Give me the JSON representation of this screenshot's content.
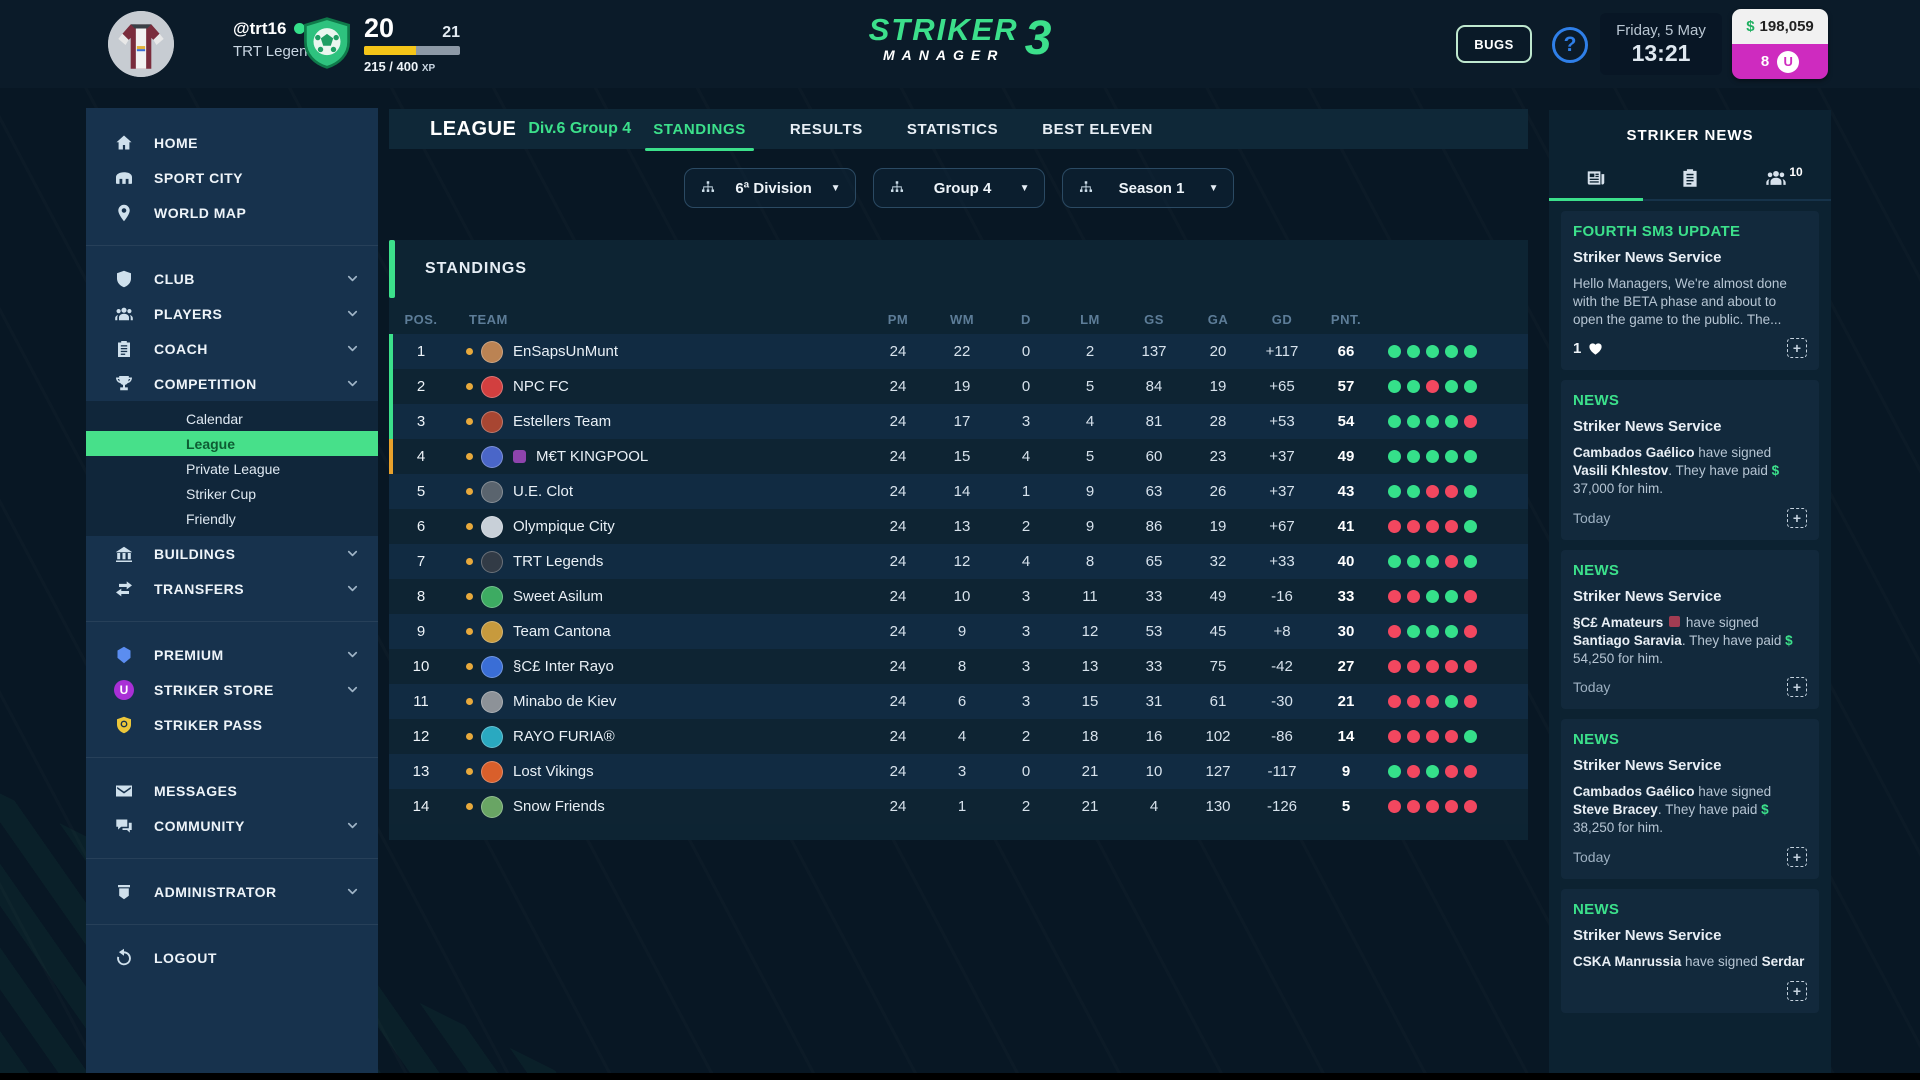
{
  "header": {
    "username": "@trt16",
    "club": "TRT Legends",
    "level": "20",
    "next_level": "21",
    "xp_text": "215 / 400",
    "xp_suffix": "XP",
    "xp_pct": 54,
    "logo": {
      "line1": "STRIKER",
      "line2": "MANAGER",
      "number": "3"
    },
    "bugs": "BUGS",
    "help": "?",
    "date": "Friday, 5 May",
    "time": "13:21",
    "currency": "$",
    "money": "198,059",
    "gems": "8",
    "gem_letter": "U"
  },
  "sidebar": {
    "sections": [
      {
        "items": [
          {
            "label": "HOME",
            "icon": "home"
          },
          {
            "label": "SPORT CITY",
            "icon": "stadium"
          },
          {
            "label": "WORLD MAP",
            "icon": "pin"
          }
        ]
      },
      {
        "items": [
          {
            "label": "CLUB",
            "icon": "shield",
            "chevron": true
          },
          {
            "label": "PLAYERS",
            "icon": "players",
            "chevron": true
          },
          {
            "label": "COACH",
            "icon": "clipboard",
            "chevron": true
          },
          {
            "label": "COMPETITION",
            "icon": "trophy",
            "chevron": true,
            "children": [
              {
                "label": "Calendar"
              },
              {
                "label": "League",
                "active": true
              },
              {
                "label": "Private League"
              },
              {
                "label": "Striker Cup"
              },
              {
                "label": "Friendly"
              }
            ]
          },
          {
            "label": "BUILDINGS",
            "icon": "buildings",
            "chevron": true
          },
          {
            "label": "TRANSFERS",
            "icon": "transfers",
            "chevron": true
          }
        ]
      },
      {
        "items": [
          {
            "label": "PREMIUM",
            "icon": "gem",
            "icon_color": "#5b8df0",
            "chevron": true
          },
          {
            "label": "STRIKER STORE",
            "icon": "store",
            "chevron": true
          },
          {
            "label": "STRIKER PASS",
            "icon": "pass",
            "icon_color": "#ecc73a"
          }
        ]
      },
      {
        "items": [
          {
            "label": "MESSAGES",
            "icon": "envelope"
          },
          {
            "label": "COMMUNITY",
            "icon": "chat",
            "chevron": true
          }
        ]
      },
      {
        "items": [
          {
            "label": "ADMINISTRATOR",
            "icon": "admin",
            "chevron": true
          }
        ]
      },
      {
        "items": [
          {
            "label": "LOGOUT",
            "icon": "logout"
          }
        ]
      }
    ]
  },
  "main": {
    "league_label": "LEAGUE",
    "league_sub": "Div.6 Group 4",
    "tabs": [
      {
        "label": "STANDINGS",
        "active": true
      },
      {
        "label": "RESULTS"
      },
      {
        "label": "STATISTICS"
      },
      {
        "label": "BEST ELEVEN"
      }
    ],
    "filters": [
      {
        "label": "6ª Division"
      },
      {
        "label": "Group 4"
      },
      {
        "label": "Season 1"
      }
    ],
    "panel_title": "STANDINGS",
    "table": {
      "columns": [
        "POS.",
        "TEAM",
        "PM",
        "WM",
        "D",
        "LM",
        "GS",
        "GA",
        "GD",
        "PNT."
      ],
      "rows": [
        {
          "pos": "1",
          "name": "EnSapsUnMunt",
          "crest": "#bb8353",
          "accent": "green",
          "pm": "24",
          "wm": "22",
          "d": "0",
          "lm": "2",
          "gs": "137",
          "ga": "20",
          "gd": "+117",
          "pnt": "66",
          "form": [
            "W",
            "W",
            "W",
            "W",
            "W"
          ]
        },
        {
          "pos": "2",
          "name": "NPC FC",
          "crest": "#d23f3f",
          "accent": "green",
          "pm": "24",
          "wm": "19",
          "d": "0",
          "lm": "5",
          "gs": "84",
          "ga": "19",
          "gd": "+65",
          "pnt": "57",
          "form": [
            "W",
            "W",
            "L",
            "W",
            "W"
          ]
        },
        {
          "pos": "3",
          "name": "Estellers Team",
          "crest": "#a84632",
          "accent": "green",
          "pm": "24",
          "wm": "17",
          "d": "3",
          "lm": "4",
          "gs": "81",
          "ga": "28",
          "gd": "+53",
          "pnt": "54",
          "form": [
            "W",
            "W",
            "W",
            "W",
            "L"
          ]
        },
        {
          "pos": "4",
          "name": "M€T KINGPOOL",
          "crest": "#4a66c8",
          "accent": "orange",
          "badge": "#8e44ad",
          "pm": "24",
          "wm": "15",
          "d": "4",
          "lm": "5",
          "gs": "60",
          "ga": "23",
          "gd": "+37",
          "pnt": "49",
          "form": [
            "W",
            "W",
            "W",
            "W",
            "W"
          ]
        },
        {
          "pos": "5",
          "name": "U.E. Clot",
          "crest": "#5a646e",
          "pm": "24",
          "wm": "14",
          "d": "1",
          "lm": "9",
          "gs": "63",
          "ga": "26",
          "gd": "+37",
          "pnt": "43",
          "form": [
            "W",
            "W",
            "L",
            "L",
            "W"
          ]
        },
        {
          "pos": "6",
          "name": "Olympique City",
          "crest": "#c8d0d8",
          "pm": "24",
          "wm": "13",
          "d": "2",
          "lm": "9",
          "gs": "86",
          "ga": "19",
          "gd": "+67",
          "pnt": "41",
          "form": [
            "L",
            "L",
            "L",
            "L",
            "W"
          ]
        },
        {
          "pos": "7",
          "name": "TRT Legends",
          "crest": "#323b46",
          "pm": "24",
          "wm": "12",
          "d": "4",
          "lm": "8",
          "gs": "65",
          "ga": "32",
          "gd": "+33",
          "pnt": "40",
          "form": [
            "W",
            "W",
            "W",
            "L",
            "W"
          ]
        },
        {
          "pos": "8",
          "name": "Sweet Asilum",
          "crest": "#3dab62",
          "pm": "24",
          "wm": "10",
          "d": "3",
          "lm": "11",
          "gs": "33",
          "ga": "49",
          "gd": "-16",
          "pnt": "33",
          "form": [
            "L",
            "L",
            "W",
            "W",
            "L"
          ]
        },
        {
          "pos": "9",
          "name": "Team Cantona",
          "crest": "#c79a3d",
          "pm": "24",
          "wm": "9",
          "d": "3",
          "lm": "12",
          "gs": "53",
          "ga": "45",
          "gd": "+8",
          "pnt": "30",
          "form": [
            "L",
            "W",
            "W",
            "W",
            "L"
          ]
        },
        {
          "pos": "10",
          "name": "§C£ Inter Rayo",
          "crest": "#3a6ed6",
          "pm": "24",
          "wm": "8",
          "d": "3",
          "lm": "13",
          "gs": "33",
          "ga": "75",
          "gd": "-42",
          "pnt": "27",
          "form": [
            "L",
            "L",
            "L",
            "L",
            "L"
          ]
        },
        {
          "pos": "11",
          "name": "Minabo de Kiev",
          "crest": "#8d9298",
          "pm": "24",
          "wm": "6",
          "d": "3",
          "lm": "15",
          "gs": "31",
          "ga": "61",
          "gd": "-30",
          "pnt": "21",
          "form": [
            "L",
            "L",
            "L",
            "W",
            "L"
          ]
        },
        {
          "pos": "12",
          "name": "RAYO FURIA®",
          "crest": "#2aa9c0",
          "pm": "24",
          "wm": "4",
          "d": "2",
          "lm": "18",
          "gs": "16",
          "ga": "102",
          "gd": "-86",
          "pnt": "14",
          "form": [
            "L",
            "L",
            "L",
            "L",
            "W"
          ]
        },
        {
          "pos": "13",
          "name": "Lost Vikings",
          "crest": "#d95f2b",
          "pm": "24",
          "wm": "3",
          "d": "0",
          "lm": "21",
          "gs": "10",
          "ga": "127",
          "gd": "-117",
          "pnt": "9",
          "form": [
            "W",
            "L",
            "W",
            "L",
            "L"
          ]
        },
        {
          "pos": "14",
          "name": "Snow Friends",
          "crest": "#69a564",
          "pm": "24",
          "wm": "1",
          "d": "2",
          "lm": "21",
          "gs": "4",
          "ga": "130",
          "gd": "-126",
          "pnt": "5",
          "form": [
            "L",
            "L",
            "L",
            "L",
            "L"
          ]
        }
      ]
    }
  },
  "news": {
    "title": "STRIKER NEWS",
    "tabs": [
      {
        "icon": "newspaper",
        "active": true
      },
      {
        "icon": "notes"
      },
      {
        "icon": "people",
        "badge": "10"
      }
    ],
    "items": [
      {
        "tag": "FOURTH SM3 UPDATE",
        "source": "Striker News Service",
        "body": [
          [
            "Hello Managers, We're almost done with the BETA phase and about to open the game to the public. The...",
            ""
          ]
        ],
        "likes": "1"
      },
      {
        "tag": "NEWS",
        "source": "Striker News Service",
        "body": [
          [
            "Cambados Gaélico",
            "b"
          ],
          [
            " have signed ",
            ""
          ],
          [
            "Vasili Khlestov",
            "b"
          ],
          [
            ". They have paid ",
            ""
          ],
          [
            "$",
            "g"
          ],
          [
            " 37,000 for him.",
            ""
          ]
        ],
        "date": "Today"
      },
      {
        "tag": "NEWS",
        "source": "Striker News Service",
        "body": [
          [
            "§C£ Amateurs",
            "b"
          ],
          [
            " ",
            ""
          ],
          [
            "",
            "q"
          ],
          [
            " have signed ",
            ""
          ],
          [
            "Santiago Saravia",
            "b"
          ],
          [
            ". They have paid ",
            ""
          ],
          [
            "$",
            "g"
          ],
          [
            " 54,250 for him.",
            ""
          ]
        ],
        "date": "Today"
      },
      {
        "tag": "NEWS",
        "source": "Striker News Service",
        "body": [
          [
            "Cambados Gaélico",
            "b"
          ],
          [
            " have signed ",
            ""
          ],
          [
            "Steve Bracey",
            "b"
          ],
          [
            ". They have paid ",
            ""
          ],
          [
            "$",
            "g"
          ],
          [
            " 38,250 for him.",
            ""
          ]
        ],
        "date": "Today"
      },
      {
        "tag": "NEWS",
        "source": "Striker News Service",
        "body": [
          [
            "CSKA Manrussia",
            "b"
          ],
          [
            " have signed ",
            ""
          ],
          [
            "Serdar",
            "b"
          ]
        ],
        "date": ""
      }
    ]
  }
}
